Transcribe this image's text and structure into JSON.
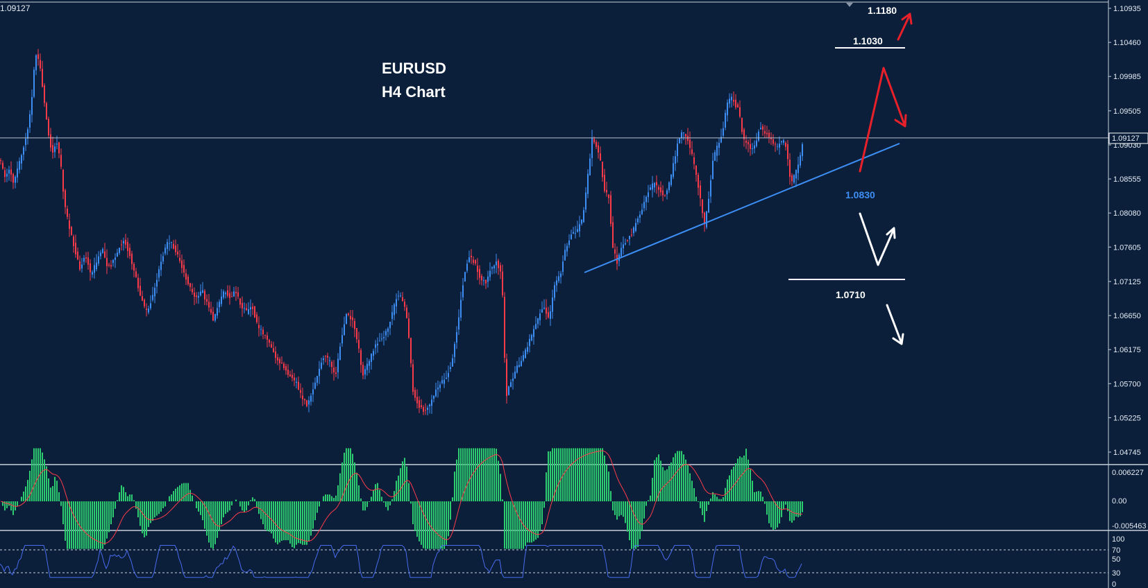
{
  "chart_data": {
    "type": "candlestick",
    "symbol_title": "EURUSD",
    "timeframe_title": "H4 Chart",
    "corner_price": "1.09127",
    "current_price": 1.09127,
    "current_price_label": "1.09127",
    "price_axis": {
      "range": [
        1.0448,
        1.1105
      ],
      "ticks": [
        1.10935,
        1.1046,
        1.09985,
        1.09505,
        1.0903,
        1.08555,
        1.0808,
        1.07605,
        1.07125,
        1.0665,
        1.06175,
        1.057,
        1.05225,
        1.04745
      ],
      "tick_labels": [
        "1.10935",
        "1.10460",
        "1.09985",
        "1.09505",
        "1.09030",
        "1.08555",
        "1.08080",
        "1.07605",
        "1.07125",
        "1.06650",
        "1.06175",
        "1.05700",
        "1.05225",
        "1.04745"
      ]
    },
    "colors": {
      "bull": "#3d8ef5",
      "bear": "#ff3b4a",
      "background": "#0b1f3a",
      "trendline": "#3d8ef5",
      "red_arrow": "#e8202a",
      "white": "#ffffff",
      "macd_hist": "#2ecc71",
      "macd_signal": "#ff3b4a",
      "rsi_line": "#4a6cf0"
    },
    "anchors": [
      [
        0,
        1.088
      ],
      [
        6,
        1.086
      ],
      [
        12,
        1.087
      ],
      [
        18,
        1.085
      ],
      [
        24,
        1.087
      ],
      [
        30,
        1.089
      ],
      [
        38,
        1.092
      ],
      [
        44,
        1.096
      ],
      [
        50,
        1.103
      ],
      [
        56,
        1.102
      ],
      [
        62,
        1.097
      ],
      [
        68,
        1.092
      ],
      [
        74,
        1.089
      ],
      [
        80,
        1.091
      ],
      [
        86,
        1.088
      ],
      [
        92,
        1.082
      ],
      [
        98,
        1.079
      ],
      [
        106,
        1.076
      ],
      [
        114,
        1.073
      ],
      [
        122,
        1.075
      ],
      [
        130,
        1.072
      ],
      [
        138,
        1.074
      ],
      [
        146,
        1.076
      ],
      [
        154,
        1.073
      ],
      [
        162,
        1.074
      ],
      [
        170,
        1.076
      ],
      [
        178,
        1.077
      ],
      [
        186,
        1.075
      ],
      [
        194,
        1.072
      ],
      [
        202,
        1.069
      ],
      [
        210,
        1.067
      ],
      [
        218,
        1.069
      ],
      [
        226,
        1.072
      ],
      [
        234,
        1.075
      ],
      [
        242,
        1.077
      ],
      [
        250,
        1.076
      ],
      [
        258,
        1.074
      ],
      [
        266,
        1.072
      ],
      [
        274,
        1.07
      ],
      [
        282,
        1.069
      ],
      [
        290,
        1.07
      ],
      [
        298,
        1.068
      ],
      [
        306,
        1.066
      ],
      [
        314,
        1.068
      ],
      [
        322,
        1.07
      ],
      [
        330,
        1.069
      ],
      [
        338,
        1.07
      ],
      [
        346,
        1.068
      ],
      [
        354,
        1.067
      ],
      [
        362,
        1.068
      ],
      [
        370,
        1.065
      ],
      [
        378,
        1.064
      ],
      [
        386,
        1.063
      ],
      [
        394,
        1.061
      ],
      [
        402,
        1.06
      ],
      [
        410,
        1.059
      ],
      [
        418,
        1.058
      ],
      [
        426,
        1.057
      ],
      [
        434,
        1.055
      ],
      [
        442,
        1.054
      ],
      [
        450,
        1.056
      ],
      [
        458,
        1.059
      ],
      [
        466,
        1.061
      ],
      [
        474,
        1.06
      ],
      [
        482,
        1.058
      ],
      [
        490,
        1.063
      ],
      [
        498,
        1.067
      ],
      [
        506,
        1.066
      ],
      [
        514,
        1.063
      ],
      [
        522,
        1.058
      ],
      [
        530,
        1.06
      ],
      [
        538,
        1.062
      ],
      [
        546,
        1.063
      ],
      [
        554,
        1.064
      ],
      [
        562,
        1.066
      ],
      [
        570,
        1.069
      ],
      [
        578,
        1.069
      ],
      [
        586,
        1.066
      ],
      [
        594,
        1.056
      ],
      [
        602,
        1.054
      ],
      [
        610,
        1.053
      ],
      [
        618,
        1.054
      ],
      [
        626,
        1.056
      ],
      [
        634,
        1.057
      ],
      [
        642,
        1.058
      ],
      [
        650,
        1.06
      ],
      [
        658,
        1.065
      ],
      [
        666,
        1.071
      ],
      [
        674,
        1.075
      ],
      [
        682,
        1.074
      ],
      [
        690,
        1.072
      ],
      [
        698,
        1.071
      ],
      [
        706,
        1.073
      ],
      [
        714,
        1.074
      ],
      [
        722,
        1.072
      ],
      [
        728,
        1.055
      ],
      [
        734,
        1.057
      ],
      [
        742,
        1.059
      ],
      [
        750,
        1.06
      ],
      [
        758,
        1.062
      ],
      [
        766,
        1.064
      ],
      [
        774,
        1.066
      ],
      [
        782,
        1.068
      ],
      [
        790,
        1.066
      ],
      [
        798,
        1.071
      ],
      [
        806,
        1.072
      ],
      [
        814,
        1.076
      ],
      [
        822,
        1.078
      ],
      [
        830,
        1.078
      ],
      [
        838,
        1.08
      ],
      [
        846,
        1.086
      ],
      [
        852,
        1.091
      ],
      [
        858,
        1.09
      ],
      [
        864,
        1.088
      ],
      [
        870,
        1.084
      ],
      [
        876,
        1.083
      ],
      [
        882,
        1.076
      ],
      [
        888,
        1.074
      ],
      [
        894,
        1.076
      ],
      [
        902,
        1.077
      ],
      [
        910,
        1.078
      ],
      [
        918,
        1.08
      ],
      [
        926,
        1.082
      ],
      [
        934,
        1.084
      ],
      [
        942,
        1.085
      ],
      [
        950,
        1.084
      ],
      [
        958,
        1.083
      ],
      [
        966,
        1.086
      ],
      [
        974,
        1.09
      ],
      [
        982,
        1.092
      ],
      [
        990,
        1.091
      ],
      [
        998,
        1.088
      ],
      [
        1006,
        1.084
      ],
      [
        1014,
        1.079
      ],
      [
        1020,
        1.083
      ],
      [
        1026,
        1.088
      ],
      [
        1032,
        1.09
      ],
      [
        1040,
        1.092
      ],
      [
        1046,
        1.096
      ],
      [
        1052,
        1.097
      ],
      [
        1058,
        1.096
      ],
      [
        1064,
        1.095
      ],
      [
        1070,
        1.091
      ],
      [
        1078,
        1.09
      ],
      [
        1086,
        1.09
      ],
      [
        1094,
        1.093
      ],
      [
        1102,
        1.092
      ],
      [
        1110,
        1.091
      ],
      [
        1118,
        1.09
      ],
      [
        1126,
        1.091
      ],
      [
        1132,
        1.09
      ],
      [
        1138,
        1.085
      ],
      [
        1144,
        1.086
      ],
      [
        1150,
        1.088
      ],
      [
        1156,
        1.091
      ]
    ],
    "annotations": {
      "level_1180": {
        "label": "1.1180",
        "price": 1.118
      },
      "level_1030": {
        "label": "1.1030",
        "price": 1.103
      },
      "trend_support": {
        "label": "1.0830",
        "price": 1.083
      },
      "level_0710": {
        "label": "1.0710",
        "price": 1.071
      }
    },
    "trendline": {
      "start": [
        842,
        1.0725
      ],
      "end": [
        1296,
        1.0905
      ]
    },
    "macd": {
      "y_ticks": [
        "0.006227",
        "0.00",
        "-0.005463"
      ],
      "range": [
        -0.005463,
        0.006227
      ]
    },
    "rsi": {
      "y_ticks": [
        "100",
        "70",
        "50",
        "30",
        "0"
      ],
      "levels": [
        70,
        30
      ],
      "range": [
        0,
        100
      ]
    }
  }
}
